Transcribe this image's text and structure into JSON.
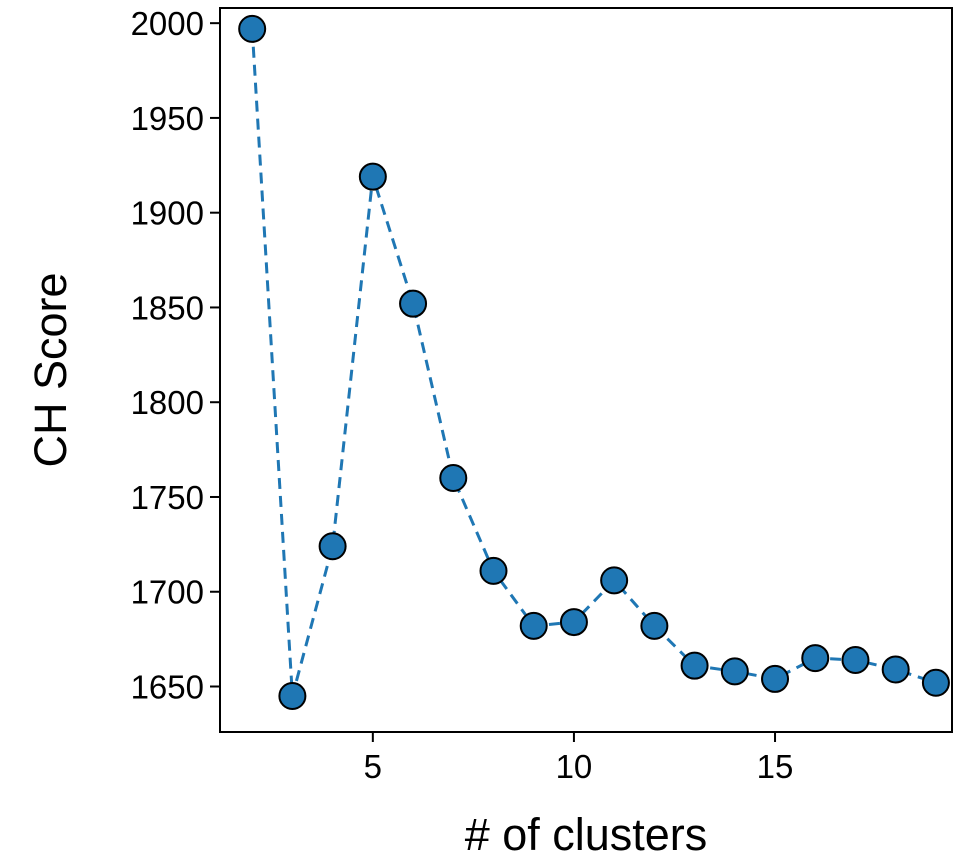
{
  "chart_data": {
    "type": "line",
    "title": "",
    "xlabel": "# of clusters",
    "ylabel": "CH Score",
    "xlim": [
      1.2,
      19.4
    ],
    "ylim": [
      1626,
      2008
    ],
    "x_ticks": [
      5,
      10,
      15
    ],
    "y_ticks": [
      1650,
      1700,
      1750,
      1800,
      1850,
      1900,
      1950,
      2000
    ],
    "grid": false,
    "legend": "none",
    "line_style": "dashed",
    "marker": "circle",
    "colors": {
      "series": "#1f77b4",
      "marker_edge": "#000000",
      "axes": "#000000"
    },
    "series": [
      {
        "x": [
          2,
          3,
          4,
          5,
          6,
          7,
          8,
          9,
          10,
          11,
          12,
          13,
          14,
          15,
          16,
          17,
          18,
          19
        ],
        "values": [
          1997,
          1645,
          1724,
          1919,
          1852,
          1760,
          1711,
          1682,
          1684,
          1706,
          1682,
          1661,
          1658,
          1654,
          1665,
          1664,
          1659,
          1652
        ]
      }
    ]
  }
}
